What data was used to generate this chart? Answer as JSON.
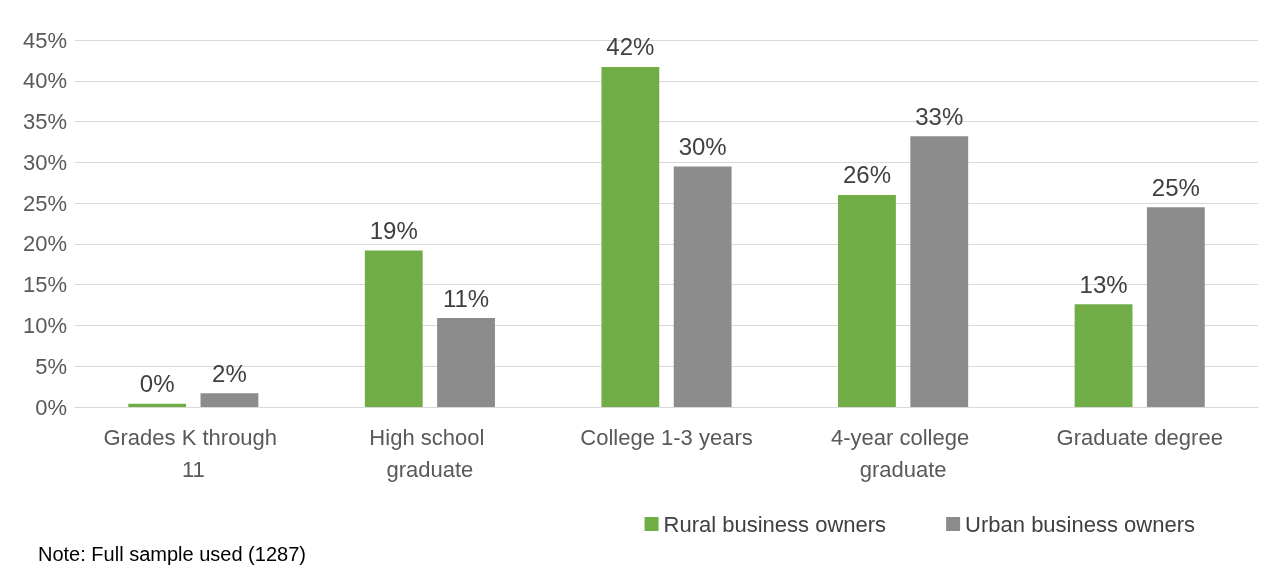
{
  "chart_data": {
    "type": "bar",
    "categories": [
      "Grades K through 11",
      "High school graduate",
      "College 1-3 years",
      "4-year college graduate",
      "Graduate degree"
    ],
    "series": [
      {
        "name": "Rural business owners",
        "color": "#70ad47",
        "values": [
          0.4,
          19.2,
          41.7,
          26,
          12.6
        ],
        "value_labels": [
          "0%",
          "19%",
          "42%",
          "26%",
          "13%"
        ]
      },
      {
        "name": "Urban business owners",
        "color": "#8c8c8c",
        "values": [
          1.7,
          10.9,
          29.5,
          33.2,
          24.5
        ],
        "value_labels": [
          "2%",
          "11%",
          "30%",
          "33%",
          "25%"
        ]
      }
    ],
    "ylim": [
      0,
      45
    ],
    "yticks": [
      {
        "value": 0,
        "label": "0%"
      },
      {
        "value": 5,
        "label": "5%"
      },
      {
        "value": 10,
        "label": "10%"
      },
      {
        "value": 15,
        "label": "15%"
      },
      {
        "value": 20,
        "label": "20%"
      },
      {
        "value": 25,
        "label": "25%"
      },
      {
        "value": 30,
        "label": "30%"
      },
      {
        "value": 35,
        "label": "35%"
      },
      {
        "value": 40,
        "label": "40%"
      },
      {
        "value": 45,
        "label": "45%"
      }
    ],
    "grid": "y",
    "legend": "bottom right",
    "marker": "square",
    "annotations": [
      "Note: Full sample used (1287)"
    ]
  }
}
